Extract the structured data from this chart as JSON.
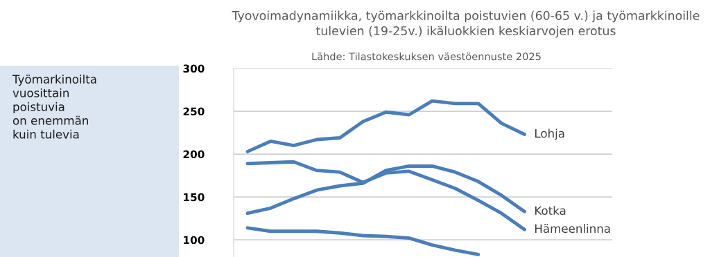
{
  "chart_data": {
    "type": "line",
    "title": "Tyovoimadynamiikka, työmarkkinoilta poistuvien (60-65 v.) ja työmarkkinoille\ntulevien (19-25v.) ikäluokkien keskiarvojen erotus",
    "subtitle": "Lähde: Tilastokeskuksen väestöennuste 2025",
    "annotations": [
      "Työmarkinoilta\nvuosittain\npoistuvia\non enemmän\nkuin tulevia"
    ],
    "categories": [
      null,
      null,
      null,
      null,
      null,
      null,
      null,
      null,
      null,
      null,
      null,
      null,
      null
    ],
    "series": [
      {
        "name": "Lohja",
        "color": "#4a7ebb",
        "values": [
          203,
          215,
          210,
          217,
          219,
          238,
          249,
          246,
          262,
          259,
          259,
          236,
          223
        ]
      },
      {
        "name": "Kotka",
        "color": "#4a7ebb",
        "values": [
          131,
          137,
          148,
          158,
          163,
          166,
          181,
          186,
          186,
          179,
          168,
          152,
          133
        ]
      },
      {
        "name": "Hämeenlinna",
        "color": "#4a7ebb",
        "values": [
          189,
          190,
          191,
          181,
          179,
          167,
          178,
          180,
          170,
          160,
          146,
          131,
          112
        ]
      },
      {
        "color": "#4a7ebb",
        "values": [
          114,
          110,
          110,
          110,
          108,
          105,
          104,
          102,
          94,
          88,
          83,
          null,
          null
        ]
      }
    ],
    "ylim": [
      80,
      300
    ],
    "yticks": [
      100,
      150,
      200,
      250,
      300
    ],
    "grid": "y",
    "legend": false,
    "marker": "none",
    "line_style": "solid"
  }
}
